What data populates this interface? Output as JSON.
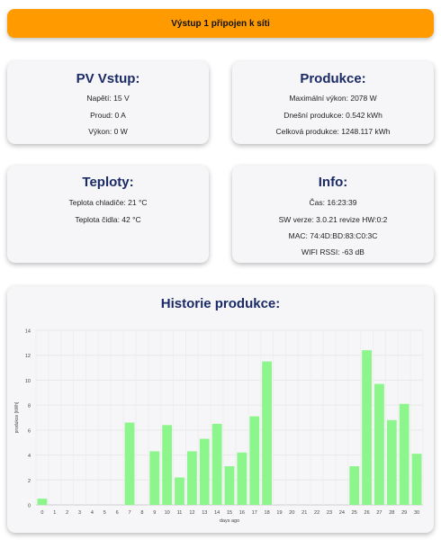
{
  "banner": {
    "text": "Výstup 1 připojen k síti",
    "color": "#ff9b00"
  },
  "pv": {
    "title": "PV Vstup:",
    "voltage": "Napětí: 15 V",
    "current": "Proud: 0 A",
    "power": "Výkon: 0 W"
  },
  "production": {
    "title": "Produkce:",
    "max_power": "Maximální výkon: 2078 W",
    "today": "Dnešní produkce: 0.542 kWh",
    "total": "Celková produkce: 1248.117 kWh"
  },
  "temps": {
    "title": "Teploty:",
    "cooler": "Teplota chladiče: 21 °C",
    "sensor": "Teplota čidla: 42 °C"
  },
  "info": {
    "title": "Info:",
    "time": "Čas: 16:23:39",
    "sw": "SW verze: 3.0.21 revize HW:0:2",
    "mac": "MAC: 74:4D:BD:83:C0:3C",
    "wifi": "WIFI RSSI: -63 dB"
  },
  "history": {
    "title": "Historie produkce:"
  },
  "chart_data": {
    "type": "bar",
    "title": "Historie produkce:",
    "xlabel": "days ago",
    "ylabel": "produkce [kWh]",
    "ylim": [
      0,
      14
    ],
    "yticks": [
      "0",
      "2",
      "4",
      "6",
      "8",
      "10",
      "12",
      "14"
    ],
    "grid": true,
    "bar_color": "#8cf58c",
    "categories": [
      "0",
      "1",
      "2",
      "3",
      "4",
      "5",
      "6",
      "7",
      "8",
      "9",
      "10",
      "11",
      "12",
      "13",
      "14",
      "15",
      "16",
      "17",
      "18",
      "19",
      "20",
      "21",
      "22",
      "23",
      "24",
      "25",
      "26",
      "27",
      "28",
      "29",
      "30"
    ],
    "values": [
      0.5,
      0,
      0,
      0,
      0,
      0,
      0,
      6.6,
      0,
      4.3,
      6.4,
      2.2,
      4.3,
      5.3,
      6.5,
      3.1,
      4.2,
      7.1,
      11.5,
      0,
      0,
      0,
      0,
      0,
      0,
      3.1,
      12.4,
      9.7,
      6.8,
      8.1,
      4.1
    ]
  }
}
